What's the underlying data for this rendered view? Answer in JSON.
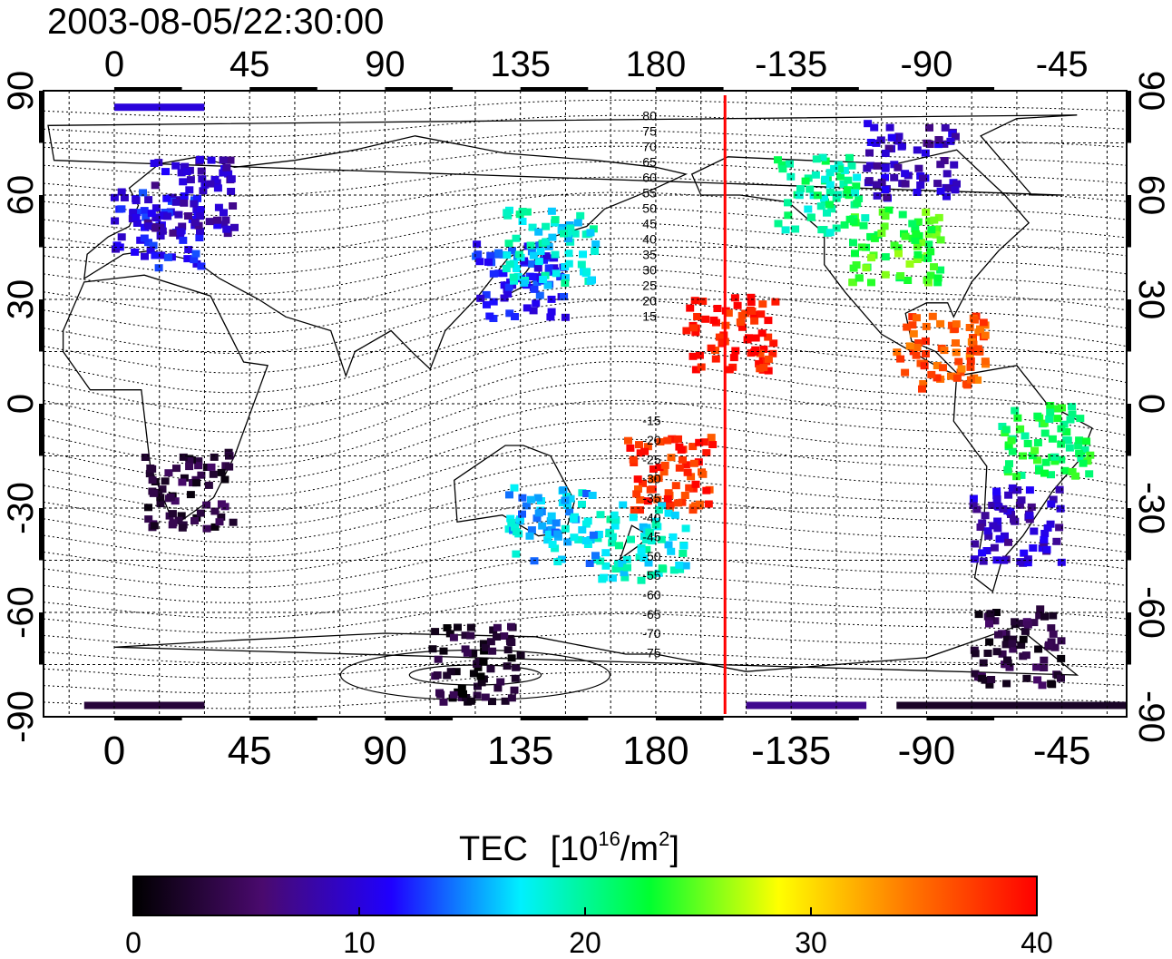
{
  "timestamp": "2003-08-05/22:30:00",
  "axes": {
    "lon_ticks": [
      "0",
      "45",
      "90",
      "135",
      "180",
      "-135",
      "-90",
      "-45"
    ],
    "lat_ticks": [
      "90",
      "60",
      "30",
      "0",
      "-30",
      "-60",
      "-90"
    ]
  },
  "contours": {
    "north_labels": [
      "80",
      "75",
      "70",
      "65",
      "60",
      "55",
      "50",
      "45",
      "40",
      "35",
      "30",
      "25",
      "20",
      "15"
    ],
    "south_labels": [
      "-15",
      "-20",
      "-25",
      "-30",
      "-35",
      "-40",
      "-45",
      "-50",
      "-55",
      "-60",
      "-65",
      "-70",
      "-75"
    ]
  },
  "terminator": {
    "longitude": -157,
    "color": "#ff0000"
  },
  "colorbar": {
    "title": "TEC",
    "unit_prefix": "[10",
    "unit_exp": "16",
    "unit_mid": "/m",
    "unit_exp2": "2",
    "unit_suffix": "]",
    "ticks": [
      "0",
      "10",
      "20",
      "30",
      "40"
    ],
    "min": 0,
    "max": 40,
    "stops": [
      "#000000",
      "#4a0a6e",
      "#1f00ff",
      "#00f0ff",
      "#00ff30",
      "#ffff00",
      "#ff7800",
      "#ff0000"
    ]
  },
  "tec_regions": [
    {
      "lon": 15,
      "lat": 50,
      "value": 11
    },
    {
      "lon": 25,
      "lat": 60,
      "value": 9
    },
    {
      "lon": 135,
      "lat": 35,
      "value": 12
    },
    {
      "lon": 145,
      "lat": 45,
      "value": 18
    },
    {
      "lon": -100,
      "lat": 45,
      "value": 24
    },
    {
      "lon": -125,
      "lat": 60,
      "value": 20
    },
    {
      "lon": -95,
      "lat": 70,
      "value": 9
    },
    {
      "lon": -85,
      "lat": 15,
      "value": 36
    },
    {
      "lon": -155,
      "lat": 20,
      "value": 39
    },
    {
      "lon": -175,
      "lat": -20,
      "value": 38
    },
    {
      "lon": 175,
      "lat": -40,
      "value": 18
    },
    {
      "lon": 145,
      "lat": -35,
      "value": 16
    },
    {
      "lon": 25,
      "lat": -25,
      "value": 3
    },
    {
      "lon": -60,
      "lat": -35,
      "value": 9
    },
    {
      "lon": -50,
      "lat": -10,
      "value": 22
    },
    {
      "lon": -60,
      "lat": -70,
      "value": 3
    },
    {
      "lon": 120,
      "lat": -75,
      "value": 2
    }
  ]
}
